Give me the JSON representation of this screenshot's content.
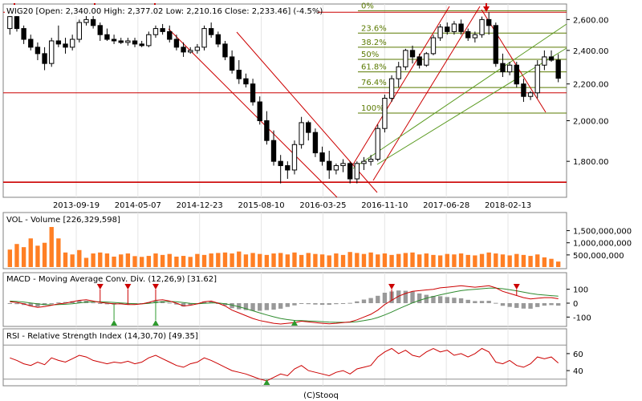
{
  "header": {
    "text": "WIG20 [Open: 2,340.00 High: 2,377.02 Low: 2,210.16 Close: 2,233.46] (-4.5%)"
  },
  "panels": {
    "volume_label": "VOL - Volume [226,329,598]",
    "macd_label": "MACD - Moving Average Conv. Div. (12,26,9) [31.62]",
    "rsi_label": "RSI - Relative Strength Index (14,30,70) [49.35]"
  },
  "footer": "(C)Stooq",
  "colors": {
    "up": "#ffffff",
    "down": "#000000",
    "volume": "#ff7f24",
    "macd": "#cc0000",
    "signal": "#2e8b2e",
    "hist": "#999999",
    "rsi": "#cc0000",
    "trend": "#cc0000",
    "fib": "#5a7a00"
  },
  "chart_data": [
    {
      "type": "candlestick",
      "title": "WIG20 [Open: 2,340.00 High: 2,377.02 Low: 2,210.16 Close: 2,233.46] (-4.5%)",
      "x_tick_labels": [
        "2013-09-19",
        "2014-05-07",
        "2014-12-23",
        "2015-08-10",
        "2016-03-25",
        "2016-11-10",
        "2017-06-28",
        "2018-02-13"
      ],
      "y_ticks": [
        1800,
        2000,
        2200,
        2400,
        2600
      ],
      "y_tick_labels": [
        "1,800.00",
        "2,000.00",
        "2,200.00",
        "2,400.00",
        "2,600.00"
      ],
      "ylim": [
        1650,
        2690
      ],
      "y_scale": "log",
      "fib_levels": [
        {
          "label": "0%",
          "value": 2660
        },
        {
          "label": "23.6%",
          "value": 2510
        },
        {
          "label": "38.2%",
          "value": 2420
        },
        {
          "label": "50%",
          "value": 2345
        },
        {
          "label": "61.8%",
          "value": 2270
        },
        {
          "label": "76.4%",
          "value": 2180
        },
        {
          "label": "100%",
          "value": 2040
        }
      ],
      "candles": [
        {
          "o": 2540,
          "h": 2650,
          "l": 2500,
          "c": 2620
        },
        {
          "o": 2620,
          "h": 2650,
          "l": 2520,
          "c": 2540
        },
        {
          "o": 2540,
          "h": 2560,
          "l": 2440,
          "c": 2470
        },
        {
          "o": 2470,
          "h": 2500,
          "l": 2400,
          "c": 2420
        },
        {
          "o": 2420,
          "h": 2450,
          "l": 2340,
          "c": 2380
        },
        {
          "o": 2380,
          "h": 2420,
          "l": 2280,
          "c": 2320
        },
        {
          "o": 2320,
          "h": 2480,
          "l": 2300,
          "c": 2460
        },
        {
          "o": 2460,
          "h": 2560,
          "l": 2420,
          "c": 2440
        },
        {
          "o": 2440,
          "h": 2480,
          "l": 2380,
          "c": 2420
        },
        {
          "o": 2420,
          "h": 2500,
          "l": 2400,
          "c": 2470
        },
        {
          "o": 2470,
          "h": 2600,
          "l": 2450,
          "c": 2580
        },
        {
          "o": 2580,
          "h": 2640,
          "l": 2560,
          "c": 2600
        },
        {
          "o": 2600,
          "h": 2630,
          "l": 2540,
          "c": 2560
        },
        {
          "o": 2560,
          "h": 2580,
          "l": 2460,
          "c": 2500
        },
        {
          "o": 2500,
          "h": 2540,
          "l": 2460,
          "c": 2470
        },
        {
          "o": 2470,
          "h": 2500,
          "l": 2440,
          "c": 2460
        },
        {
          "o": 2460,
          "h": 2480,
          "l": 2440,
          "c": 2450
        },
        {
          "o": 2450,
          "h": 2480,
          "l": 2430,
          "c": 2460
        },
        {
          "o": 2460,
          "h": 2480,
          "l": 2420,
          "c": 2440
        },
        {
          "o": 2440,
          "h": 2460,
          "l": 2420,
          "c": 2430
        },
        {
          "o": 2430,
          "h": 2520,
          "l": 2420,
          "c": 2500
        },
        {
          "o": 2500,
          "h": 2560,
          "l": 2480,
          "c": 2540
        },
        {
          "o": 2540,
          "h": 2570,
          "l": 2500,
          "c": 2520
        },
        {
          "o": 2520,
          "h": 2560,
          "l": 2450,
          "c": 2470
        },
        {
          "o": 2470,
          "h": 2500,
          "l": 2400,
          "c": 2420
        },
        {
          "o": 2420,
          "h": 2450,
          "l": 2360,
          "c": 2390
        },
        {
          "o": 2390,
          "h": 2420,
          "l": 2380,
          "c": 2400
        },
        {
          "o": 2400,
          "h": 2440,
          "l": 2380,
          "c": 2420
        },
        {
          "o": 2420,
          "h": 2560,
          "l": 2400,
          "c": 2540
        },
        {
          "o": 2540,
          "h": 2580,
          "l": 2480,
          "c": 2500
        },
        {
          "o": 2500,
          "h": 2520,
          "l": 2420,
          "c": 2440
        },
        {
          "o": 2440,
          "h": 2460,
          "l": 2340,
          "c": 2360
        },
        {
          "o": 2360,
          "h": 2400,
          "l": 2260,
          "c": 2280
        },
        {
          "o": 2280,
          "h": 2340,
          "l": 2200,
          "c": 2230
        },
        {
          "o": 2230,
          "h": 2260,
          "l": 2180,
          "c": 2200
        },
        {
          "o": 2200,
          "h": 2230,
          "l": 2080,
          "c": 2100
        },
        {
          "o": 2100,
          "h": 2130,
          "l": 1980,
          "c": 2000
        },
        {
          "o": 2000,
          "h": 2050,
          "l": 1880,
          "c": 1900
        },
        {
          "o": 1900,
          "h": 1950,
          "l": 1780,
          "c": 1800
        },
        {
          "o": 1800,
          "h": 1830,
          "l": 1700,
          "c": 1780
        },
        {
          "o": 1780,
          "h": 1800,
          "l": 1720,
          "c": 1760
        },
        {
          "o": 1760,
          "h": 1900,
          "l": 1740,
          "c": 1880
        },
        {
          "o": 1880,
          "h": 2020,
          "l": 1860,
          "c": 1990
        },
        {
          "o": 1990,
          "h": 2000,
          "l": 1900,
          "c": 1940
        },
        {
          "o": 1940,
          "h": 1960,
          "l": 1820,
          "c": 1840
        },
        {
          "o": 1840,
          "h": 1870,
          "l": 1780,
          "c": 1800
        },
        {
          "o": 1800,
          "h": 1850,
          "l": 1720,
          "c": 1760
        },
        {
          "o": 1760,
          "h": 1790,
          "l": 1740,
          "c": 1780
        },
        {
          "o": 1780,
          "h": 1810,
          "l": 1750,
          "c": 1790
        },
        {
          "o": 1790,
          "h": 1800,
          "l": 1700,
          "c": 1720
        },
        {
          "o": 1720,
          "h": 1800,
          "l": 1700,
          "c": 1790
        },
        {
          "o": 1790,
          "h": 1820,
          "l": 1760,
          "c": 1800
        },
        {
          "o": 1800,
          "h": 1830,
          "l": 1780,
          "c": 1810
        },
        {
          "o": 1810,
          "h": 1980,
          "l": 1800,
          "c": 1960
        },
        {
          "o": 1960,
          "h": 2140,
          "l": 1940,
          "c": 2120
        },
        {
          "o": 2120,
          "h": 2250,
          "l": 2100,
          "c": 2230
        },
        {
          "o": 2230,
          "h": 2330,
          "l": 2180,
          "c": 2300
        },
        {
          "o": 2300,
          "h": 2410,
          "l": 2280,
          "c": 2400
        },
        {
          "o": 2400,
          "h": 2430,
          "l": 2320,
          "c": 2360
        },
        {
          "o": 2360,
          "h": 2380,
          "l": 2290,
          "c": 2310
        },
        {
          "o": 2310,
          "h": 2390,
          "l": 2300,
          "c": 2380
        },
        {
          "o": 2380,
          "h": 2500,
          "l": 2370,
          "c": 2480
        },
        {
          "o": 2480,
          "h": 2570,
          "l": 2460,
          "c": 2550
        },
        {
          "o": 2550,
          "h": 2580,
          "l": 2500,
          "c": 2520
        },
        {
          "o": 2520,
          "h": 2590,
          "l": 2500,
          "c": 2570
        },
        {
          "o": 2570,
          "h": 2600,
          "l": 2500,
          "c": 2520
        },
        {
          "o": 2520,
          "h": 2540,
          "l": 2460,
          "c": 2480
        },
        {
          "o": 2480,
          "h": 2520,
          "l": 2450,
          "c": 2500
        },
        {
          "o": 2500,
          "h": 2620,
          "l": 2480,
          "c": 2600
        },
        {
          "o": 2600,
          "h": 2650,
          "l": 2500,
          "c": 2560
        },
        {
          "o": 2560,
          "h": 2580,
          "l": 2300,
          "c": 2320
        },
        {
          "o": 2320,
          "h": 2380,
          "l": 2240,
          "c": 2270
        },
        {
          "o": 2270,
          "h": 2330,
          "l": 2250,
          "c": 2310
        },
        {
          "o": 2310,
          "h": 2330,
          "l": 2180,
          "c": 2200
        },
        {
          "o": 2200,
          "h": 2230,
          "l": 2100,
          "c": 2130
        },
        {
          "o": 2130,
          "h": 2160,
          "l": 2110,
          "c": 2150
        },
        {
          "o": 2150,
          "h": 2340,
          "l": 2120,
          "c": 2310
        },
        {
          "o": 2310,
          "h": 2400,
          "l": 2280,
          "c": 2360
        },
        {
          "o": 2360,
          "h": 2400,
          "l": 2330,
          "c": 2340
        },
        {
          "o": 2340,
          "h": 2377,
          "l": 2210,
          "c": 2233
        }
      ]
    },
    {
      "type": "bar",
      "title": "VOL - Volume [226,329,598]",
      "y_ticks": [
        500000000,
        1000000000,
        1500000000
      ],
      "y_tick_labels": [
        "500,000,000",
        "1,000,000,000",
        "1,500,000,000"
      ],
      "ylim": [
        0,
        1750000000
      ],
      "values": [
        720000000,
        950000000,
        820000000,
        1180000000,
        880000000,
        1000000000,
        1650000000,
        1180000000,
        600000000,
        520000000,
        700000000,
        380000000,
        560000000,
        600000000,
        560000000,
        430000000,
        520000000,
        560000000,
        450000000,
        420000000,
        460000000,
        560000000,
        500000000,
        540000000,
        430000000,
        460000000,
        420000000,
        540000000,
        500000000,
        560000000,
        580000000,
        600000000,
        560000000,
        640000000,
        520000000,
        580000000,
        540000000,
        500000000,
        560000000,
        580000000,
        520000000,
        600000000,
        500000000,
        580000000,
        540000000,
        520000000,
        480000000,
        560000000,
        500000000,
        620000000,
        580000000,
        540000000,
        600000000,
        520000000,
        560000000,
        500000000,
        540000000,
        580000000,
        600000000,
        520000000,
        560000000,
        500000000,
        480000000,
        540000000,
        520000000,
        560000000,
        500000000,
        480000000,
        540000000,
        600000000,
        560000000,
        520000000,
        480000000,
        540000000,
        500000000,
        460000000,
        520000000,
        400000000,
        340000000,
        226329598
      ]
    },
    {
      "type": "line",
      "title": "MACD - Moving Average Conv. Div. (12,26,9) [31.62]",
      "y_ticks": [
        -100,
        0,
        100
      ],
      "y_tick_labels": [
        "-100",
        "0",
        "100"
      ],
      "ylim": [
        -150,
        150
      ],
      "series": [
        {
          "name": "MACD",
          "values": [
            10,
            5,
            -5,
            -20,
            -30,
            -25,
            -15,
            -5,
            0,
            10,
            20,
            25,
            15,
            5,
            0,
            -5,
            -5,
            -10,
            -10,
            -5,
            5,
            20,
            25,
            15,
            0,
            -20,
            -15,
            -5,
            10,
            15,
            0,
            -20,
            -50,
            -70,
            -90,
            -110,
            -125,
            -135,
            -145,
            -150,
            -145,
            -140,
            -130,
            -135,
            -140,
            -145,
            -148,
            -145,
            -140,
            -135,
            -120,
            -100,
            -80,
            -50,
            -10,
            20,
            50,
            70,
            85,
            90,
            95,
            100,
            110,
            115,
            120,
            125,
            120,
            115,
            120,
            125,
            110,
            85,
            70,
            55,
            40,
            30,
            35,
            40,
            40,
            32
          ]
        },
        {
          "name": "Signal",
          "values": [
            15,
            12,
            8,
            2,
            -5,
            -10,
            -12,
            -10,
            -8,
            -4,
            2,
            8,
            10,
            10,
            8,
            5,
            2,
            -2,
            -4,
            -5,
            -2,
            4,
            10,
            12,
            10,
            4,
            -2,
            -4,
            -2,
            2,
            2,
            -4,
            -14,
            -26,
            -40,
            -55,
            -70,
            -85,
            -98,
            -110,
            -118,
            -124,
            -126,
            -128,
            -130,
            -133,
            -136,
            -138,
            -138,
            -137,
            -133,
            -126,
            -117,
            -103,
            -85,
            -64,
            -41,
            -19,
            2,
            20,
            35,
            48,
            60,
            71,
            81,
            90,
            96,
            100,
            104,
            108,
            108,
            104,
            97,
            89,
            79,
            70,
            63,
            58,
            54,
            50
          ]
        }
      ]
    },
    {
      "type": "line",
      "title": "RSI - Relative Strength Index (14,30,70) [49.35]",
      "y_ticks": [
        40,
        60
      ],
      "y_tick_labels": [
        "40",
        "60"
      ],
      "ylim": [
        25,
        75
      ],
      "series": [
        {
          "name": "RSI",
          "values": [
            55,
            52,
            48,
            46,
            50,
            47,
            55,
            52,
            50,
            54,
            58,
            56,
            52,
            50,
            48,
            50,
            49,
            51,
            48,
            50,
            55,
            58,
            54,
            50,
            46,
            44,
            48,
            50,
            55,
            52,
            48,
            44,
            40,
            38,
            36,
            33,
            30,
            28,
            32,
            36,
            34,
            42,
            46,
            40,
            38,
            36,
            34,
            38,
            40,
            36,
            42,
            44,
            46,
            56,
            62,
            66,
            60,
            64,
            58,
            56,
            62,
            66,
            62,
            64,
            58,
            60,
            56,
            60,
            66,
            62,
            50,
            48,
            52,
            46,
            44,
            48,
            56,
            54,
            56,
            49
          ]
        }
      ]
    }
  ]
}
